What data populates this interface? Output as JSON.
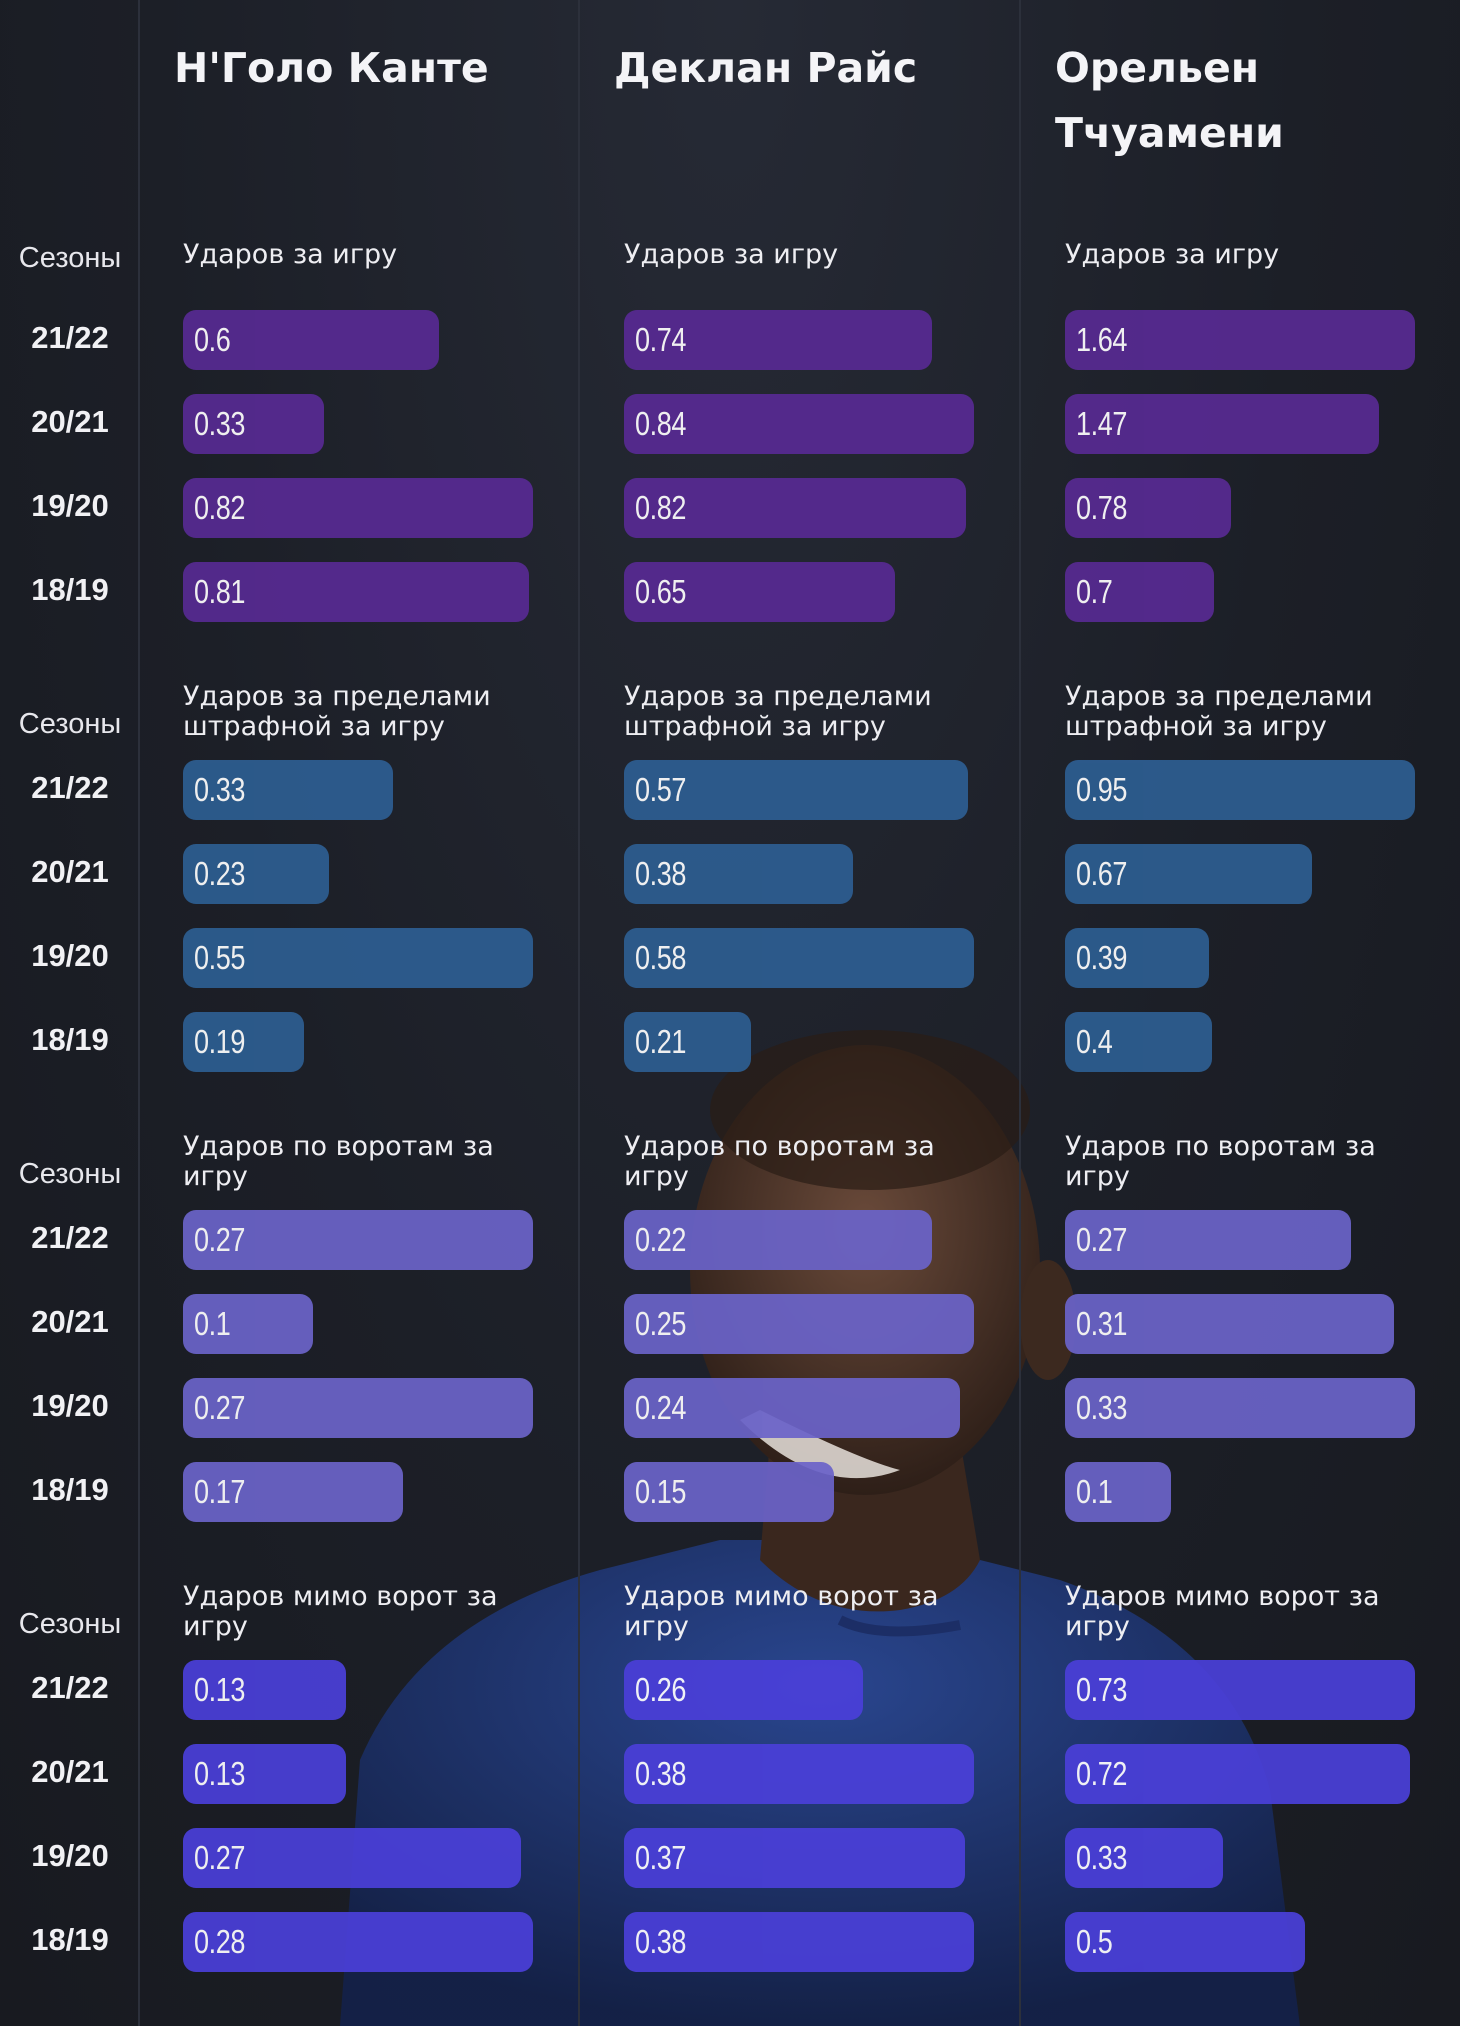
{
  "chart_data": {
    "type": "bar",
    "orientation": "horizontal",
    "players": [
      "Н'Голо Канте",
      "Деклан Райс",
      "Орельен Тчуамени"
    ],
    "seasons_header": "Сезоны",
    "seasons": [
      "21/22",
      "20/21",
      "19/20",
      "18/19"
    ],
    "metrics": [
      {
        "title": "Ударов за игру",
        "color": "#572a92",
        "values": [
          [
            0.6,
            0.33,
            0.82,
            0.81
          ],
          [
            0.74,
            0.84,
            0.82,
            0.65
          ],
          [
            1.64,
            1.47,
            0.78,
            0.7
          ]
        ],
        "labels": [
          [
            "0.6",
            "0.33",
            "0.82",
            "0.81"
          ],
          [
            "0.74",
            "0.84",
            "0.82",
            "0.65"
          ],
          [
            "1.64",
            "1.47",
            "0.78",
            "0.7"
          ]
        ]
      },
      {
        "title": "Ударов за пределами штрафной за игру",
        "color": "#2d5e91",
        "values": [
          [
            0.33,
            0.23,
            0.55,
            0.19
          ],
          [
            0.57,
            0.38,
            0.58,
            0.21
          ],
          [
            0.95,
            0.67,
            0.39,
            0.4
          ]
        ],
        "labels": [
          [
            "0.33",
            "0.23",
            "0.55",
            "0.19"
          ],
          [
            "0.57",
            "0.38",
            "0.58",
            "0.21"
          ],
          [
            "0.95",
            "0.67",
            "0.39",
            "0.4"
          ]
        ]
      },
      {
        "title": "Ударов по воротам за игру",
        "color": "#6a63c8",
        "values": [
          [
            0.27,
            0.1,
            0.27,
            0.17
          ],
          [
            0.22,
            0.25,
            0.24,
            0.15
          ],
          [
            0.27,
            0.31,
            0.33,
            0.1
          ]
        ],
        "labels": [
          [
            "0.27",
            "0.1",
            "0.27",
            "0.17"
          ],
          [
            "0.22",
            "0.25",
            "0.24",
            "0.15"
          ],
          [
            "0.27",
            "0.31",
            "0.33",
            "0.1"
          ]
        ]
      },
      {
        "title": "Ударов мимо ворот за игру",
        "color": "#4a3fd8",
        "values": [
          [
            0.13,
            0.13,
            0.27,
            0.28
          ],
          [
            0.26,
            0.38,
            0.37,
            0.38
          ],
          [
            0.73,
            0.72,
            0.33,
            0.5
          ]
        ],
        "labels": [
          [
            "0.13",
            "0.13",
            "0.27",
            "0.28"
          ],
          [
            "0.26",
            "0.38",
            "0.37",
            "0.38"
          ],
          [
            "0.73",
            "0.72",
            "0.33",
            "0.5"
          ]
        ]
      }
    ]
  }
}
